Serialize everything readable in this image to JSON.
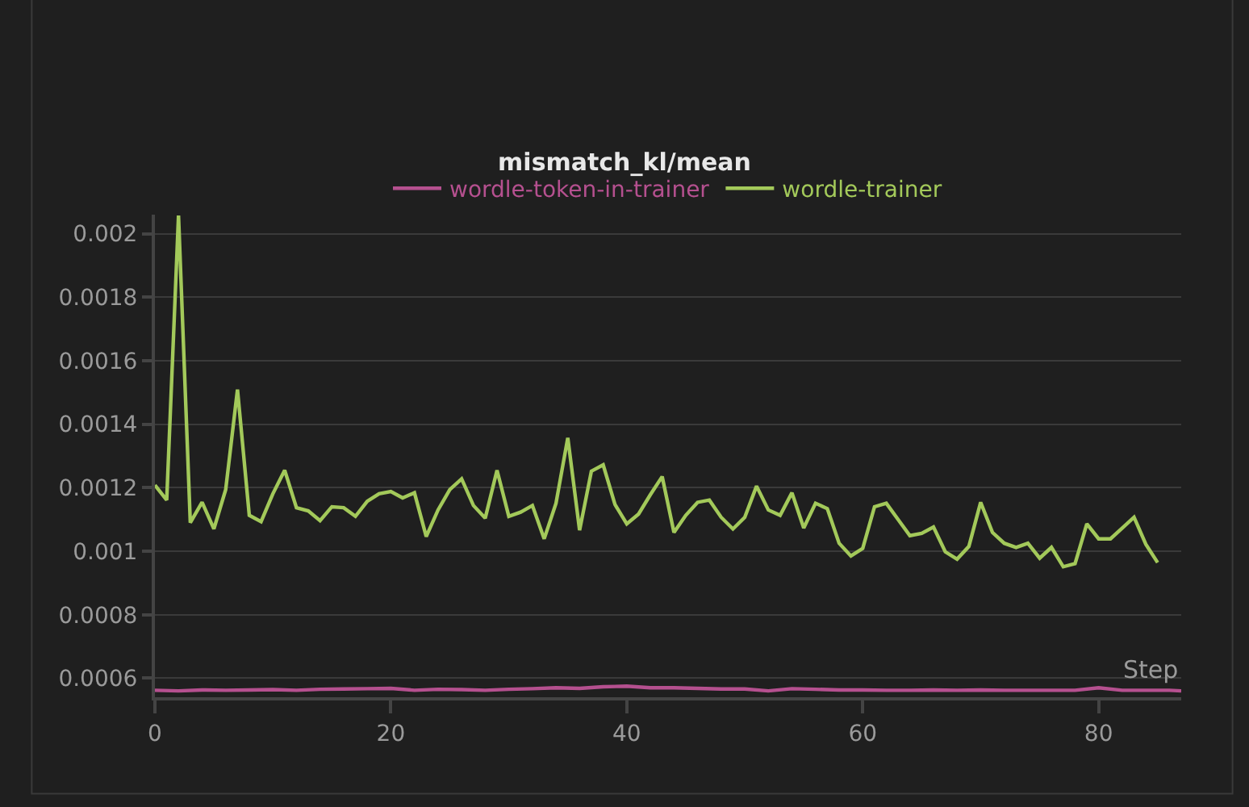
{
  "chart_data": {
    "type": "line",
    "title": "mismatch_kl/mean",
    "xlabel": "Step",
    "xlim": [
      0,
      87
    ],
    "xticks": [
      0,
      20,
      40,
      60,
      80
    ],
    "ylim": [
      0.00054,
      0.00206
    ],
    "yticks": [
      0.0006,
      0.0008,
      0.001,
      0.0012,
      0.0014,
      0.0016,
      0.0018,
      0.002
    ],
    "grid": "y",
    "legend": "top",
    "series": [
      {
        "name": "wordle-token-in-trainer",
        "color": "#b5508f",
        "x": [
          0,
          2,
          4,
          6,
          8,
          10,
          12,
          14,
          16,
          18,
          20,
          22,
          24,
          26,
          28,
          30,
          32,
          34,
          36,
          38,
          40,
          42,
          44,
          46,
          48,
          50,
          52,
          54,
          56,
          58,
          60,
          62,
          64,
          66,
          68,
          70,
          72,
          74,
          76,
          78,
          80,
          82,
          84,
          86,
          87
        ],
        "values": [
          0.000562,
          0.00056,
          0.000563,
          0.000562,
          0.000563,
          0.000564,
          0.000562,
          0.000565,
          0.000566,
          0.000567,
          0.000568,
          0.000562,
          0.000565,
          0.000564,
          0.000562,
          0.000565,
          0.000567,
          0.00057,
          0.000568,
          0.000573,
          0.000575,
          0.00057,
          0.00057,
          0.000568,
          0.000566,
          0.000566,
          0.00056,
          0.000567,
          0.000565,
          0.000563,
          0.000563,
          0.000562,
          0.000562,
          0.000563,
          0.000562,
          0.000563,
          0.000562,
          0.000562,
          0.000562,
          0.000562,
          0.00057,
          0.000562,
          0.000562,
          0.000562,
          0.00056
        ]
      },
      {
        "name": "wordle-trainer",
        "color": "#a3c95a",
        "x": [
          0,
          1,
          2,
          3,
          4,
          5,
          6,
          7,
          8,
          9,
          10,
          11,
          12,
          13,
          14,
          15,
          16,
          17,
          18,
          19,
          20,
          21,
          22,
          23,
          24,
          25,
          26,
          27,
          28,
          29,
          30,
          31,
          32,
          33,
          34,
          35,
          36,
          37,
          38,
          39,
          40,
          41,
          42,
          43,
          44,
          45,
          46,
          47,
          48,
          49,
          50,
          51,
          52,
          53,
          54,
          55,
          56,
          57,
          58,
          59,
          60,
          61,
          62,
          63,
          64,
          65,
          66,
          67,
          68,
          69,
          70,
          71,
          72,
          73,
          74,
          75,
          76,
          77,
          78,
          79,
          80,
          81,
          82,
          83,
          84,
          85
        ],
        "values": [
          0.001208,
          0.001161,
          0.002057,
          0.00109,
          0.001154,
          0.00107,
          0.001194,
          0.001509,
          0.001113,
          0.001093,
          0.001181,
          0.001255,
          0.001137,
          0.001127,
          0.001096,
          0.00114,
          0.001137,
          0.00111,
          0.001157,
          0.001181,
          0.001188,
          0.001168,
          0.001184,
          0.001046,
          0.00113,
          0.001194,
          0.001228,
          0.001144,
          0.001104,
          0.001255,
          0.00111,
          0.001123,
          0.001144,
          0.001039,
          0.001151,
          0.001357,
          0.001066,
          0.001252,
          0.001272,
          0.001147,
          0.001086,
          0.001117,
          0.001178,
          0.001235,
          0.001059,
          0.001113,
          0.001154,
          0.001161,
          0.001107,
          0.00107,
          0.001107,
          0.001205,
          0.00113,
          0.001113,
          0.001184,
          0.001073,
          0.001151,
          0.001134,
          0.001025,
          0.000985,
          0.001009,
          0.00114,
          0.001151,
          0.0011,
          0.001049,
          0.001056,
          0.001076,
          0.000998,
          0.000975,
          0.001015,
          0.001154,
          0.001059,
          0.001025,
          0.001012,
          0.001025,
          0.000978,
          0.001012,
          0.000951,
          0.000961,
          0.001086,
          0.001039,
          0.001039,
          0.001073,
          0.001107,
          0.001022,
          0.000964
        ]
      }
    ]
  }
}
